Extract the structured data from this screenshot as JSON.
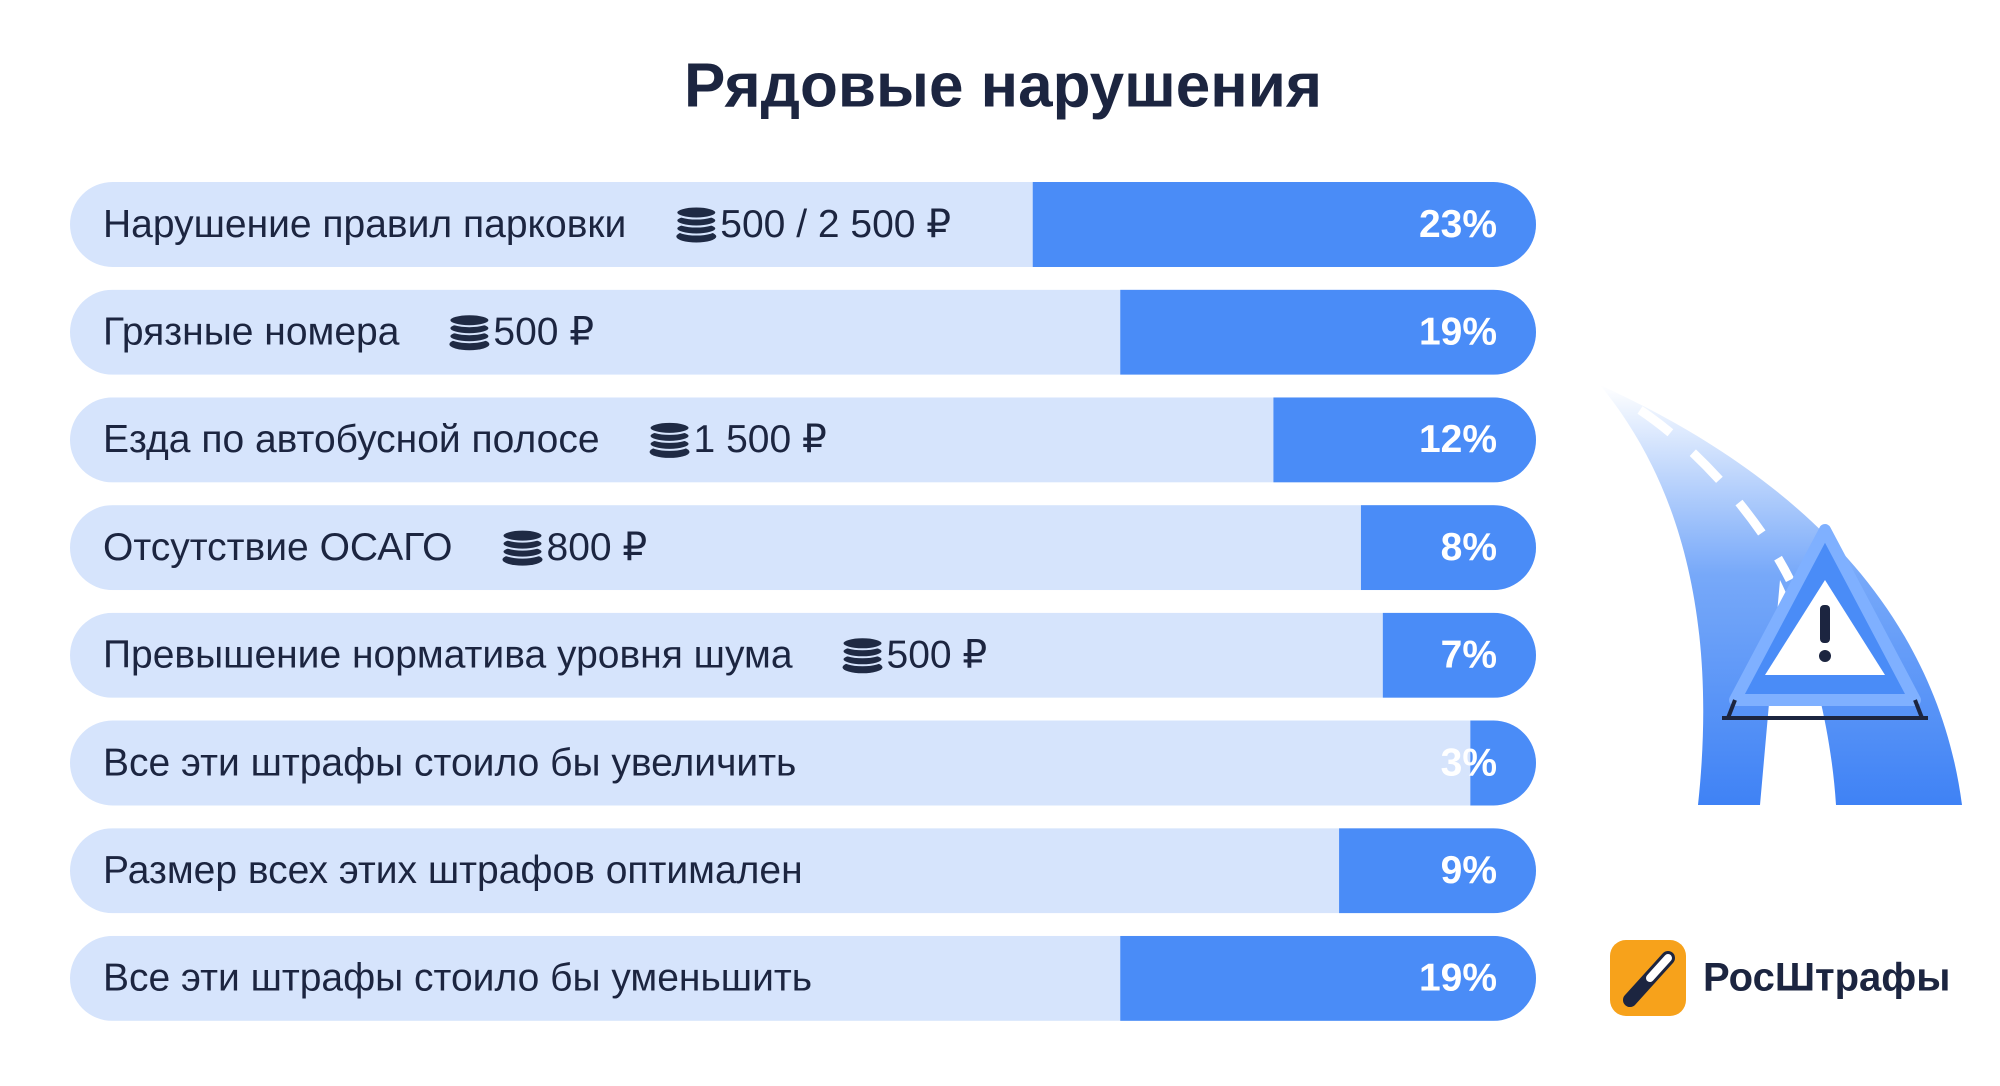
{
  "chart_data": {
    "type": "bar",
    "title": "Рядовые нарушения",
    "categories": [
      "Нарушение правил парковки",
      "Грязные номера",
      "Езда по автобусной полосе",
      "Отсутствие ОСАГО",
      "Превышение норматива уровня шума",
      "Все эти штрафы стоило бы увеличить",
      "Размер всех этих штрафов оптимален",
      "Все эти штрафы стоило бы уменьшить"
    ],
    "fines": [
      "500 / 2 500 ₽",
      "500 ₽",
      "1 500 ₽",
      "800 ₽",
      "500 ₽",
      null,
      null,
      null
    ],
    "values": [
      23,
      19,
      12,
      8,
      7,
      3,
      9,
      19
    ],
    "value_labels": [
      "23%",
      "19%",
      "12%",
      "8%",
      "7%",
      "3%",
      "9%",
      "19%"
    ],
    "xlim": [
      0,
      67
    ],
    "color": "#4a8cf7",
    "track_color": "#d6e4fc"
  },
  "brand": "РосШтрафы"
}
